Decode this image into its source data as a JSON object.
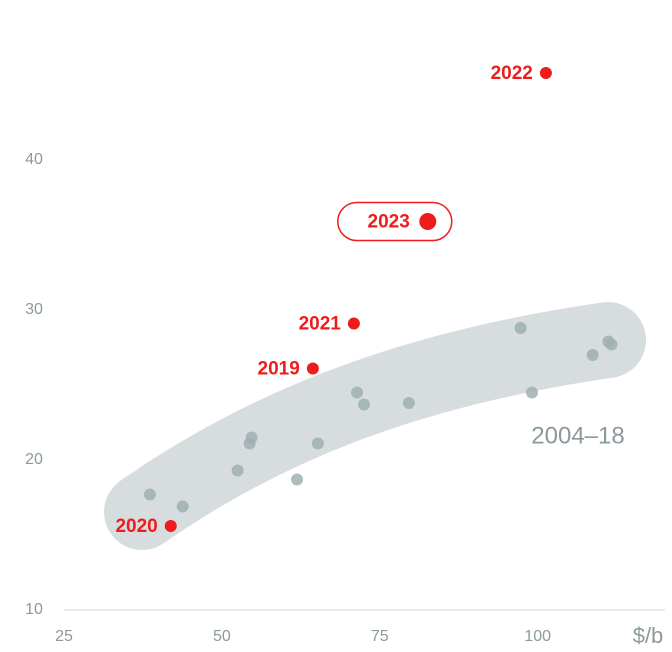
{
  "chart_data": {
    "type": "scatter",
    "x_label": "$/b",
    "xlim": [
      25,
      120
    ],
    "ylim": [
      10,
      50
    ],
    "xticks": [
      25,
      50,
      75,
      100
    ],
    "yticks": [
      10,
      20,
      30,
      40
    ],
    "series": [
      {
        "name": "2004–18",
        "color": "#9fb0b1",
        "x": [
          38.6,
          43.8,
          52.5,
          54.4,
          54.7,
          61.9,
          65.2,
          71.4,
          72.5,
          79.6,
          97.3,
          99.1,
          108.7,
          111.2,
          111.7
        ],
        "values": [
          17.7,
          16.9,
          19.3,
          21.1,
          21.5,
          18.7,
          21.1,
          24.5,
          23.7,
          23.8,
          28.8,
          24.5,
          27.0,
          27.9,
          27.7
        ]
      }
    ],
    "highlights": {
      "color": "#ee1c1c",
      "labels": [
        "2022",
        "2023",
        "2021",
        "2019",
        "2020"
      ],
      "x": [
        101.3,
        82.6,
        70.9,
        64.4,
        41.9
      ],
      "values": [
        45.8,
        35.9,
        29.1,
        26.1,
        15.6
      ],
      "emphasized_index": 1
    }
  }
}
